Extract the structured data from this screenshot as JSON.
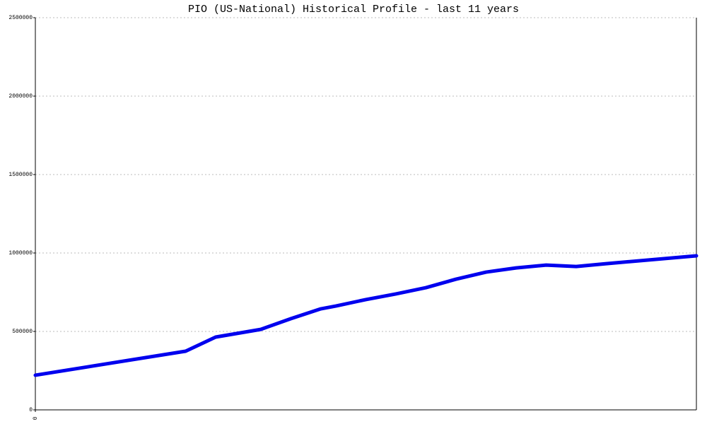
{
  "chart_data": {
    "type": "line",
    "title": "PIO (US-National) Historical Profile - last 11 years",
    "x": [
      0,
      2.5,
      3,
      3.75,
      4.25,
      4.75,
      5,
      5.5,
      6,
      6.5,
      7,
      7.5,
      8,
      8.5,
      9,
      9.5,
      11
    ],
    "series": [
      {
        "name": "PIO",
        "color": "#0000ee",
        "values": [
          221000,
          374000,
          464000,
          513000,
          581000,
          644000,
          662000,
          703000,
          739000,
          779000,
          833000,
          878000,
          905000,
          923000,
          914000,
          932000,
          982000
        ]
      }
    ],
    "xlim": [
      0,
      11
    ],
    "xticks": [
      0
    ],
    "ylim": [
      0,
      2500000
    ],
    "yticks": [
      0,
      500000,
      1000000,
      1500000,
      2000000,
      2500000
    ],
    "grid": true
  }
}
